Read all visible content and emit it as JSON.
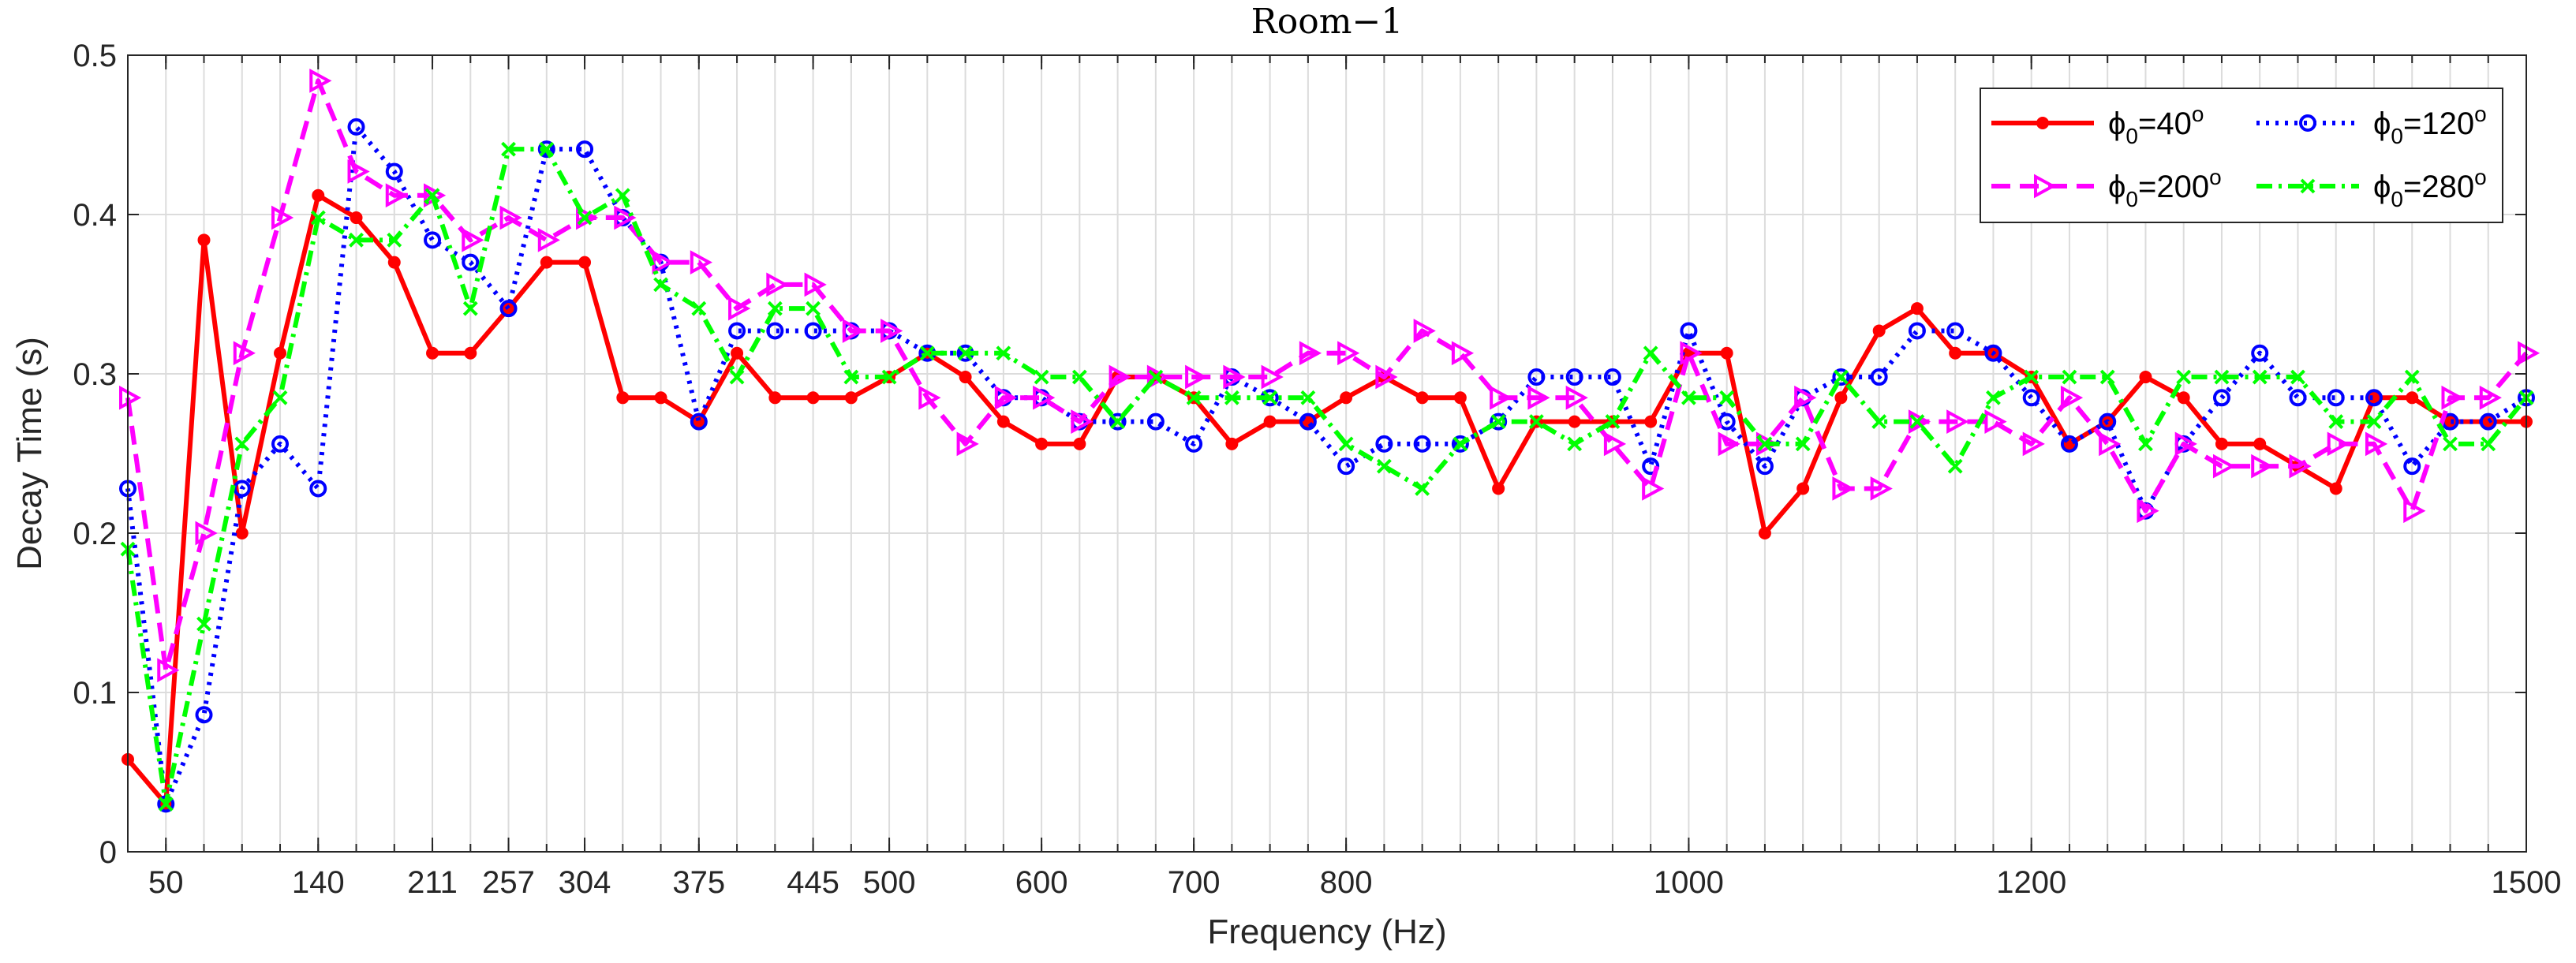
{
  "chart_data": {
    "type": "line",
    "title": "Room−1",
    "xlabel": "Frequency (Hz)",
    "ylabel": "Decay Time (s)",
    "xlim": [
      0,
      63
    ],
    "ylim": [
      0,
      0.5
    ],
    "grid": true,
    "legend_position": "top-right",
    "x_ticks": [
      {
        "pos": 1,
        "label": "50"
      },
      {
        "pos": 5,
        "label": "140"
      },
      {
        "pos": 8,
        "label": "211"
      },
      {
        "pos": 10,
        "label": "257"
      },
      {
        "pos": 12,
        "label": "304"
      },
      {
        "pos": 15,
        "label": "375"
      },
      {
        "pos": 18,
        "label": "445"
      },
      {
        "pos": 20,
        "label": "500"
      },
      {
        "pos": 24,
        "label": "600"
      },
      {
        "pos": 28,
        "label": "700"
      },
      {
        "pos": 32,
        "label": "800"
      },
      {
        "pos": 41,
        "label": "1000"
      },
      {
        "pos": 50,
        "label": "1200"
      },
      {
        "pos": 63,
        "label": "1500"
      }
    ],
    "y_ticks": [
      "0",
      "0.1",
      "0.2",
      "0.3",
      "0.4",
      "0.5"
    ],
    "x": [
      0,
      1,
      2,
      3,
      4,
      5,
      6,
      7,
      8,
      9,
      10,
      11,
      12,
      13,
      14,
      15,
      16,
      17,
      18,
      19,
      20,
      21,
      22,
      23,
      24,
      25,
      26,
      27,
      28,
      29,
      30,
      31,
      32,
      33,
      34,
      35,
      36,
      37,
      38,
      39,
      40,
      41,
      42,
      43,
      44,
      45,
      46,
      47,
      48,
      49,
      50,
      51,
      52,
      53,
      54,
      55,
      56,
      57,
      58,
      59,
      60,
      61,
      62,
      63
    ],
    "series": [
      {
        "name": "ϕ₀=40°",
        "label_base": "ϕ",
        "label_sub": "0",
        "label_mid": "=40",
        "label_sup": "o",
        "color": "#ff0000",
        "style": "solid",
        "marker": "dot",
        "values": [
          0.058,
          0.03,
          0.384,
          0.2,
          0.313,
          0.412,
          0.398,
          0.37,
          0.313,
          0.313,
          0.341,
          0.37,
          0.37,
          0.285,
          0.285,
          0.27,
          0.313,
          0.285,
          0.285,
          0.285,
          0.298,
          0.313,
          0.298,
          0.27,
          0.256,
          0.256,
          0.298,
          0.298,
          0.285,
          0.256,
          0.27,
          0.27,
          0.285,
          0.298,
          0.285,
          0.285,
          0.228,
          0.27,
          0.27,
          0.27,
          0.27,
          0.313,
          0.313,
          0.2,
          0.228,
          0.285,
          0.327,
          0.341,
          0.313,
          0.313,
          0.298,
          0.256,
          0.27,
          0.298,
          0.285,
          0.256,
          0.256,
          0.242,
          0.228,
          0.285,
          0.285,
          0.27,
          0.27,
          0.27
        ]
      },
      {
        "name": "ϕ₀=120°",
        "label_base": "ϕ",
        "label_sub": "0",
        "label_mid": "=120",
        "label_sup": "o",
        "color": "#0000ff",
        "style": "dotted",
        "marker": "circle",
        "values": [
          0.228,
          0.03,
          0.086,
          0.228,
          0.256,
          0.228,
          0.455,
          0.427,
          0.384,
          0.37,
          0.341,
          0.441,
          0.441,
          0.398,
          0.37,
          0.27,
          0.327,
          0.327,
          0.327,
          0.327,
          0.327,
          0.313,
          0.313,
          0.285,
          0.285,
          0.27,
          0.27,
          0.27,
          0.256,
          0.298,
          0.285,
          0.27,
          0.242,
          0.256,
          0.256,
          0.256,
          0.27,
          0.298,
          0.298,
          0.298,
          0.242,
          0.327,
          0.27,
          0.242,
          0.285,
          0.298,
          0.298,
          0.327,
          0.327,
          0.313,
          0.285,
          0.256,
          0.27,
          0.214,
          0.256,
          0.285,
          0.313,
          0.285,
          0.285,
          0.285,
          0.242,
          0.27,
          0.27,
          0.285
        ]
      },
      {
        "name": "ϕ₀=200°",
        "label_base": "ϕ",
        "label_sub": "0",
        "label_mid": "=200",
        "label_sup": "o",
        "color": "#ff00ff",
        "style": "dashed",
        "marker": "triangle-right",
        "values": [
          0.285,
          0.114,
          0.2,
          0.313,
          0.398,
          0.484,
          0.427,
          0.412,
          0.412,
          0.384,
          0.398,
          0.384,
          0.398,
          0.398,
          0.37,
          0.37,
          0.341,
          0.356,
          0.356,
          0.327,
          0.327,
          0.285,
          0.256,
          0.285,
          0.285,
          0.27,
          0.298,
          0.298,
          0.298,
          0.298,
          0.298,
          0.313,
          0.313,
          0.298,
          0.327,
          0.313,
          0.285,
          0.285,
          0.285,
          0.256,
          0.228,
          0.313,
          0.256,
          0.256,
          0.285,
          0.228,
          0.228,
          0.27,
          0.27,
          0.27,
          0.256,
          0.285,
          0.256,
          0.214,
          0.256,
          0.242,
          0.242,
          0.242,
          0.256,
          0.256,
          0.214,
          0.285,
          0.285,
          0.313
        ]
      },
      {
        "name": "ϕ₀=280°",
        "label_base": "ϕ",
        "label_sub": "0",
        "label_mid": "=280",
        "label_sup": "o",
        "color": "#00ff00",
        "style": "dashdot",
        "marker": "x",
        "values": [
          0.19,
          0.03,
          0.143,
          0.256,
          0.285,
          0.398,
          0.384,
          0.384,
          0.412,
          0.341,
          0.441,
          0.441,
          0.398,
          0.412,
          0.356,
          0.341,
          0.298,
          0.341,
          0.341,
          0.298,
          0.298,
          0.313,
          0.313,
          0.313,
          0.298,
          0.298,
          0.27,
          0.298,
          0.285,
          0.285,
          0.285,
          0.285,
          0.256,
          0.242,
          0.228,
          0.256,
          0.27,
          0.27,
          0.256,
          0.27,
          0.313,
          0.285,
          0.285,
          0.256,
          0.256,
          0.298,
          0.27,
          0.27,
          0.242,
          0.285,
          0.298,
          0.298,
          0.298,
          0.256,
          0.298,
          0.298,
          0.298,
          0.298,
          0.27,
          0.27,
          0.298,
          0.256,
          0.256,
          0.285
        ]
      }
    ]
  }
}
